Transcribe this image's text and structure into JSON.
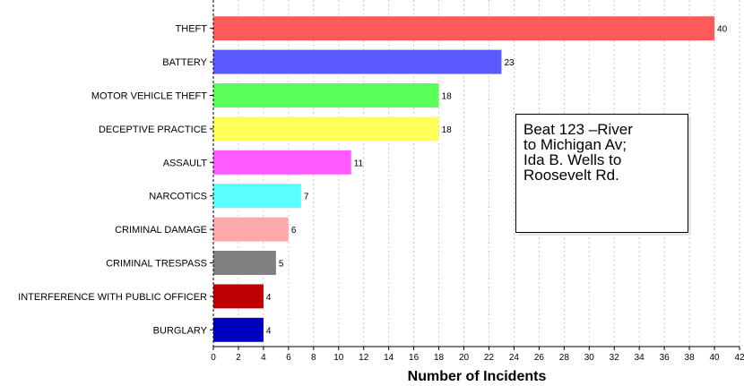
{
  "chart_data": {
    "type": "bar",
    "orientation": "horizontal",
    "categories": [
      "THEFT",
      "BATTERY",
      "MOTOR VEHICLE THEFT",
      "DECEPTIVE PRACTICE",
      "ASSAULT",
      "NARCOTICS",
      "CRIMINAL DAMAGE",
      "CRIMINAL TRESPASS",
      "INTERFERENCE WITH PUBLIC OFFICER",
      "BURGLARY"
    ],
    "values": [
      40,
      23,
      18,
      18,
      11,
      7,
      6,
      5,
      4,
      4
    ],
    "colors": [
      "#ff5a5a",
      "#5a5aff",
      "#5aff5a",
      "#ffff5a",
      "#ff5aff",
      "#5affff",
      "#ffaaaa",
      "#808080",
      "#c00000",
      "#0000c0"
    ],
    "xlabel": "Number of Incidents",
    "ylabel": "",
    "title": "",
    "xlim": [
      0,
      42
    ],
    "xticks": [
      0,
      2,
      4,
      6,
      8,
      10,
      12,
      14,
      16,
      18,
      20,
      22,
      24,
      26,
      28,
      30,
      32,
      34,
      36,
      38,
      40,
      42
    ],
    "grid": "vertical-dashed",
    "legend": "none",
    "annotation": "Beat 123 –River\nto Michigan Av;\nIda B. Wells to\nRoosevelt Rd."
  }
}
